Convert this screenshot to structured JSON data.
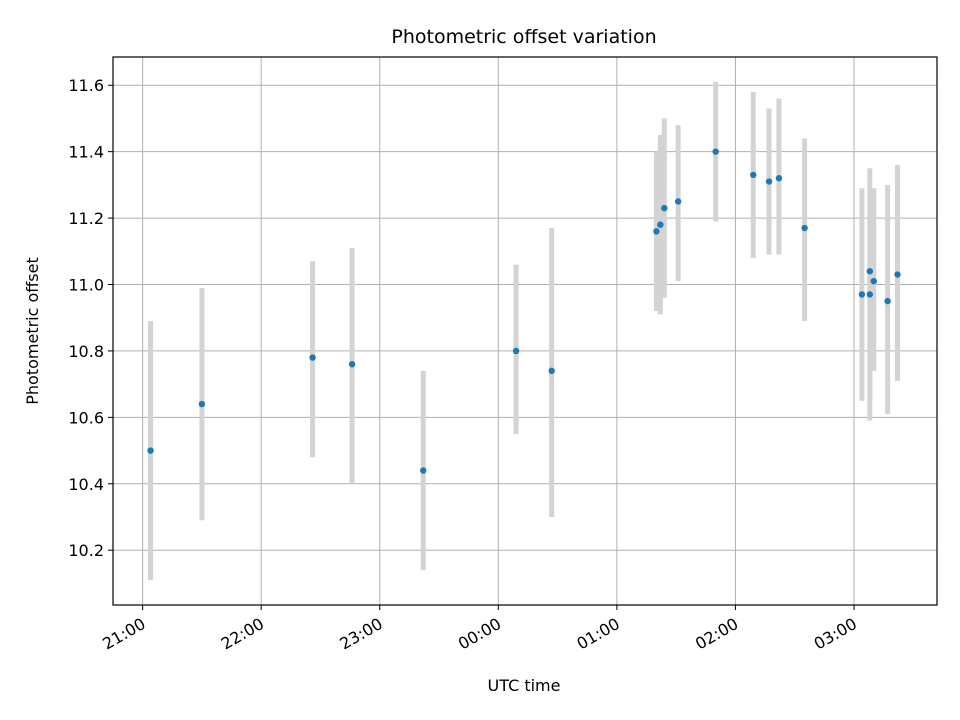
{
  "chart_data": {
    "type": "scatter",
    "title": "Photometric offset variation",
    "xlabel": "UTC time",
    "ylabel": "Photometric offset",
    "grid": true,
    "x_unit": "hours relative to 00:00 UTC",
    "xlim": [
      "20:45",
      "03:42"
    ],
    "ylim": [
      10.035,
      11.685
    ],
    "x_ticks": [
      "21:00",
      "22:00",
      "23:00",
      "00:00",
      "01:00",
      "02:00",
      "03:00"
    ],
    "y_ticks": [
      "10.2",
      "10.4",
      "10.6",
      "10.8",
      "11.0",
      "11.2",
      "11.4",
      "11.6"
    ],
    "colors": {
      "points": "#1f77b4",
      "errorbars": "#d3d3d3",
      "grid": "#b0b0b0"
    },
    "series": [
      {
        "points": [
          {
            "x": "21:04",
            "y": 10.5,
            "ylow": 10.11,
            "yhigh": 10.89
          },
          {
            "x": "21:30",
            "y": 10.64,
            "ylow": 10.29,
            "yhigh": 10.99
          },
          {
            "x": "22:26",
            "y": 10.78,
            "ylow": 10.48,
            "yhigh": 11.07
          },
          {
            "x": "22:46",
            "y": 10.76,
            "ylow": 10.4,
            "yhigh": 11.11
          },
          {
            "x": "23:22",
            "y": 10.44,
            "ylow": 10.14,
            "yhigh": 10.74
          },
          {
            "x": "00:09",
            "y": 10.8,
            "ylow": 10.55,
            "yhigh": 11.06
          },
          {
            "x": "00:27",
            "y": 10.74,
            "ylow": 10.3,
            "yhigh": 11.17
          },
          {
            "x": "01:20",
            "y": 11.16,
            "ylow": 10.92,
            "yhigh": 11.4
          },
          {
            "x": "01:22",
            "y": 11.18,
            "ylow": 10.91,
            "yhigh": 11.45
          },
          {
            "x": "01:24",
            "y": 11.23,
            "ylow": 10.96,
            "yhigh": 11.5
          },
          {
            "x": "01:31",
            "y": 11.25,
            "ylow": 11.01,
            "yhigh": 11.48
          },
          {
            "x": "01:50",
            "y": 11.4,
            "ylow": 11.19,
            "yhigh": 11.61
          },
          {
            "x": "02:09",
            "y": 11.33,
            "ylow": 11.08,
            "yhigh": 11.58
          },
          {
            "x": "02:17",
            "y": 11.31,
            "ylow": 11.09,
            "yhigh": 11.53
          },
          {
            "x": "02:22",
            "y": 11.32,
            "ylow": 11.09,
            "yhigh": 11.56
          },
          {
            "x": "02:35",
            "y": 11.17,
            "ylow": 10.89,
            "yhigh": 11.44
          },
          {
            "x": "03:04",
            "y": 10.97,
            "ylow": 10.65,
            "yhigh": 11.29
          },
          {
            "x": "03:08",
            "y": 11.04,
            "ylow": 10.59,
            "yhigh": 11.35
          },
          {
            "x": "03:08",
            "y": 10.97,
            "ylow": 10.65,
            "yhigh": 11.29
          },
          {
            "x": "03:10",
            "y": 11.01,
            "ylow": 10.74,
            "yhigh": 11.29
          },
          {
            "x": "03:17",
            "y": 10.95,
            "ylow": 10.61,
            "yhigh": 11.3
          },
          {
            "x": "03:22",
            "y": 11.03,
            "ylow": 10.71,
            "yhigh": 11.36
          }
        ]
      }
    ]
  }
}
